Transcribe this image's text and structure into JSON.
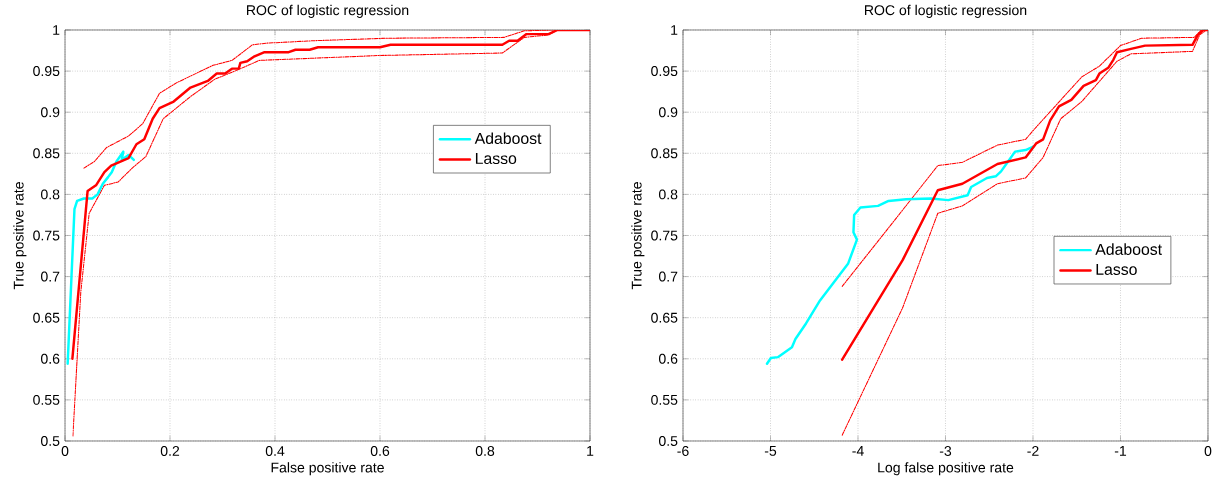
{
  "chart_data": [
    {
      "type": "line",
      "title": "ROC of logistic regression",
      "xlabel": "False positive rate",
      "ylabel": "True positive rate",
      "xlim": [
        0,
        1
      ],
      "ylim": [
        0.5,
        1
      ],
      "xticks": [
        0,
        0.2,
        0.4,
        0.6,
        0.8,
        1
      ],
      "yticks": [
        0.5,
        0.55,
        0.6,
        0.65,
        0.7,
        0.75,
        0.8,
        0.85,
        0.9,
        0.95,
        1
      ],
      "grid": true,
      "legend": "top right",
      "series": [
        {
          "color": "#ff0000",
          "line_style": "dashed",
          "x": [
            0.036,
            0.056,
            0.079,
            0.121,
            0.148,
            0.18,
            0.213,
            0.282,
            0.318,
            0.357,
            0.384,
            0.475,
            0.613,
            0.836,
            0.875,
            0.928,
            1.0
          ],
          "values": [
            0.832,
            0.84,
            0.857,
            0.871,
            0.886,
            0.923,
            0.936,
            0.957,
            0.963,
            0.982,
            0.984,
            0.987,
            0.99,
            0.991,
            0.999,
            1.0,
            1.0
          ]
        },
        {
          "color": "#ff0000",
          "line_style": "dashed",
          "x": [
            0.015,
            0.03,
            0.046,
            0.075,
            0.101,
            0.128,
            0.154,
            0.187,
            0.239,
            0.285,
            0.331,
            0.37,
            0.6,
            0.833,
            0.875,
            0.921,
            0.938,
            1.0
          ],
          "values": [
            0.506,
            0.681,
            0.777,
            0.811,
            0.815,
            0.832,
            0.846,
            0.892,
            0.919,
            0.94,
            0.952,
            0.963,
            0.969,
            0.972,
            0.991,
            0.994,
            1.0,
            1.0
          ]
        },
        {
          "name": "Adaboost",
          "color": "#00ffff",
          "line_style": "solid",
          "x": [
            0.005,
            0.018,
            0.023,
            0.036,
            0.052,
            0.062,
            0.072,
            0.082,
            0.089,
            0.098,
            0.111,
            0.108,
            0.121,
            0.131
          ],
          "values": [
            0.594,
            0.782,
            0.792,
            0.795,
            0.795,
            0.8,
            0.813,
            0.821,
            0.827,
            0.84,
            0.852,
            0.842,
            0.848,
            0.842
          ]
        },
        {
          "name": "Lasso",
          "color": "#ff0000",
          "line_style": "solid",
          "x": [
            0.014,
            0.043,
            0.059,
            0.075,
            0.088,
            0.121,
            0.136,
            0.151,
            0.167,
            0.18,
            0.207,
            0.239,
            0.272,
            0.289,
            0.305,
            0.318,
            0.331,
            0.334,
            0.347,
            0.361,
            0.38,
            0.426,
            0.439,
            0.466,
            0.482,
            0.6,
            0.62,
            0.833,
            0.846,
            0.862,
            0.879,
            0.921,
            0.938,
            1.0
          ],
          "values": [
            0.6,
            0.804,
            0.811,
            0.827,
            0.835,
            0.844,
            0.861,
            0.867,
            0.892,
            0.905,
            0.913,
            0.93,
            0.938,
            0.947,
            0.947,
            0.953,
            0.953,
            0.96,
            0.962,
            0.968,
            0.973,
            0.973,
            0.976,
            0.976,
            0.979,
            0.979,
            0.982,
            0.982,
            0.987,
            0.987,
            0.995,
            0.995,
            1.0,
            1.0
          ]
        }
      ]
    },
    {
      "type": "line",
      "title": "ROC of logistic regression",
      "xlabel": "Log false positive rate",
      "ylabel": "True positive rate",
      "xlim": [
        -6,
        0
      ],
      "ylim": [
        0.5,
        1
      ],
      "xticks": [
        -6,
        -5,
        -4,
        -3,
        -2,
        -1,
        0
      ],
      "yticks": [
        0.5,
        0.55,
        0.6,
        0.65,
        0.7,
        0.75,
        0.8,
        0.85,
        0.9,
        0.95,
        1
      ],
      "grid": true,
      "legend": "right",
      "series": [
        {
          "color": "#ff0000",
          "line_style": "dashed",
          "x": [
            -4.181,
            -3.088,
            -2.807,
            -2.406,
            -2.084,
            -2.004,
            -1.843,
            -1.442,
            -1.241,
            -1.0,
            -0.759,
            -0.157,
            -0.076,
            0.0
          ],
          "values": [
            0.688,
            0.835,
            0.839,
            0.86,
            0.867,
            0.877,
            0.896,
            0.943,
            0.956,
            0.981,
            0.99,
            0.991,
            1.0,
            1.0
          ]
        },
        {
          "color": "#ff0000",
          "line_style": "dashed",
          "x": [
            -4.181,
            -3.49,
            -3.088,
            -2.807,
            -2.406,
            -2.084,
            -1.884,
            -1.683,
            -1.442,
            -1.04,
            -0.88,
            -0.177,
            -0.096,
            -0.016
          ],
          "values": [
            0.507,
            0.662,
            0.777,
            0.786,
            0.813,
            0.82,
            0.845,
            0.892,
            0.913,
            0.962,
            0.971,
            0.974,
            0.994,
            1.0
          ]
        },
        {
          "name": "Adaboost",
          "color": "#00ffff",
          "line_style": "solid",
          "x": [
            -5.04,
            -4.996,
            -4.916,
            -4.755,
            -4.715,
            -4.594,
            -4.434,
            -4.112,
            -4.012,
            -4.052,
            -4.044,
            -3.972,
            -3.771,
            -3.651,
            -3.45,
            -3.169,
            -2.968,
            -2.747,
            -2.707,
            -2.526,
            -2.426,
            -2.365,
            -2.305,
            -2.205,
            -2.084,
            -1.996
          ],
          "values": [
            0.594,
            0.601,
            0.602,
            0.614,
            0.624,
            0.643,
            0.671,
            0.716,
            0.745,
            0.754,
            0.775,
            0.784,
            0.786,
            0.792,
            0.794,
            0.795,
            0.793,
            0.799,
            0.809,
            0.82,
            0.822,
            0.828,
            0.837,
            0.852,
            0.854,
            0.858
          ]
        },
        {
          "name": "Lasso",
          "color": "#ff0000",
          "line_style": "solid",
          "x": [
            -4.181,
            -3.49,
            -3.088,
            -2.807,
            -2.406,
            -2.084,
            -1.964,
            -1.884,
            -1.803,
            -1.703,
            -1.562,
            -1.422,
            -1.281,
            -1.241,
            -1.14,
            -1.08,
            -1.04,
            -0.88,
            -0.719,
            -0.177,
            -0.116,
            -0.056,
            0.0
          ],
          "values": [
            0.599,
            0.72,
            0.805,
            0.813,
            0.837,
            0.845,
            0.862,
            0.867,
            0.89,
            0.907,
            0.915,
            0.932,
            0.939,
            0.947,
            0.954,
            0.964,
            0.973,
            0.977,
            0.981,
            0.982,
            0.994,
            1.0,
            1.0
          ]
        }
      ]
    }
  ]
}
